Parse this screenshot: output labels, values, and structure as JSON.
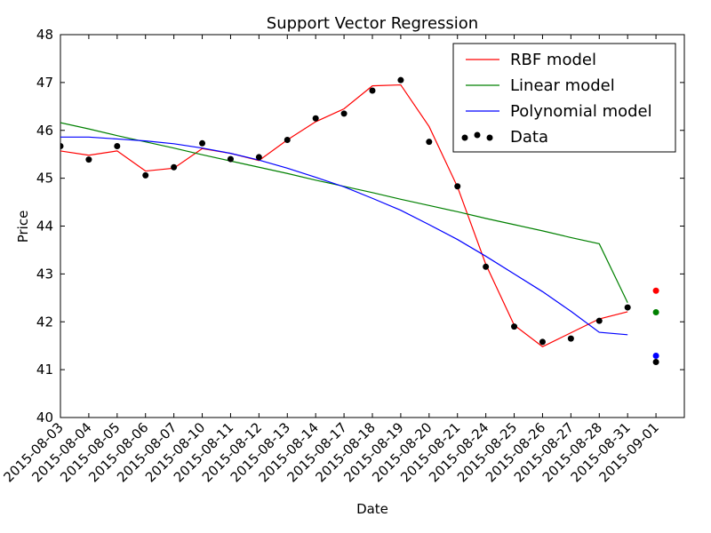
{
  "chart_data": {
    "type": "line",
    "title": "Support Vector Regression",
    "xlabel": "Date",
    "ylabel": "Price",
    "ylim": [
      40,
      48
    ],
    "yticks": [
      40,
      41,
      42,
      43,
      44,
      45,
      46,
      47,
      48
    ],
    "categories": [
      "2015-08-03",
      "2015-08-04",
      "2015-08-05",
      "2015-08-06",
      "2015-08-07",
      "2015-08-10",
      "2015-08-11",
      "2015-08-12",
      "2015-08-13",
      "2015-08-14",
      "2015-08-17",
      "2015-08-18",
      "2015-08-19",
      "2015-08-20",
      "2015-08-21",
      "2015-08-24",
      "2015-08-25",
      "2015-08-26",
      "2015-08-27",
      "2015-08-28",
      "2015-08-31",
      "2015-09-01"
    ],
    "grid": false,
    "legend_position": "top-right",
    "series": [
      {
        "name": "RBF model",
        "kind": "line",
        "color": "#ff0000",
        "values": [
          45.57,
          45.48,
          45.57,
          45.15,
          45.21,
          45.62,
          45.52,
          45.37,
          45.8,
          46.18,
          46.45,
          46.93,
          46.95,
          46.08,
          44.82,
          43.2,
          41.93,
          41.48,
          41.77,
          42.06,
          42.21,
          null
        ],
        "prediction": 42.65
      },
      {
        "name": "Linear model",
        "kind": "line",
        "color": "#008000",
        "values": [
          46.16,
          46.03,
          45.89,
          45.76,
          45.63,
          45.49,
          45.36,
          45.23,
          45.1,
          44.96,
          44.83,
          44.7,
          44.56,
          44.43,
          44.3,
          44.16,
          44.03,
          43.9,
          43.76,
          43.63,
          42.4,
          null
        ],
        "prediction": 42.2
      },
      {
        "name": "Polynomial model",
        "kind": "line",
        "color": "#0000ff",
        "values": [
          45.86,
          45.86,
          45.82,
          45.78,
          45.72,
          45.63,
          45.52,
          45.38,
          45.21,
          45.02,
          44.82,
          44.58,
          44.33,
          44.03,
          43.72,
          43.37,
          43.0,
          42.63,
          42.22,
          41.78,
          41.73,
          null
        ],
        "prediction": 41.29
      },
      {
        "name": "Data",
        "kind": "scatter",
        "color": "#000000",
        "values": [
          45.67,
          45.39,
          45.67,
          45.06,
          45.23,
          45.73,
          45.4,
          45.44,
          45.8,
          46.25,
          46.35,
          46.83,
          47.05,
          45.76,
          44.83,
          43.15,
          41.9,
          41.58,
          41.65,
          42.02,
          42.3,
          41.16
        ]
      }
    ]
  }
}
